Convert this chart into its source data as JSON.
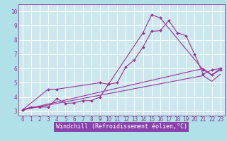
{
  "bg_color": "#b0e0e8",
  "plot_bg_color": "#cce8ee",
  "grid_color": "#ffffff",
  "line_color": "#993399",
  "xlabel": "Windchill (Refroidissement éolien,°C)",
  "bottom_bar_color": "#8844aa",
  "ylabel_ticks": [
    3,
    4,
    5,
    6,
    7,
    8,
    9,
    10
  ],
  "xlim": [
    -0.5,
    23.5
  ],
  "ylim": [
    2.7,
    10.5
  ],
  "xtick_labels": [
    "0",
    "1",
    "2",
    "3",
    "4",
    "5",
    "6",
    "7",
    "8",
    "9",
    "10",
    "11",
    "12",
    "13",
    "14",
    "15",
    "16",
    "17",
    "18",
    "19",
    "20",
    "21",
    "22",
    "23"
  ],
  "series1_x": [
    0,
    1,
    2,
    3,
    4,
    5,
    6,
    7,
    8,
    9,
    10,
    11,
    12,
    13,
    14,
    15,
    16,
    17,
    18,
    19,
    20,
    21,
    22,
    23
  ],
  "series1_y": [
    3.1,
    3.3,
    3.3,
    3.3,
    3.9,
    3.55,
    3.6,
    3.75,
    3.75,
    4.0,
    4.9,
    5.0,
    6.1,
    6.6,
    7.5,
    8.6,
    8.65,
    9.35,
    8.5,
    8.3,
    7.0,
    5.6,
    5.9,
    6.0
  ],
  "series2_x": [
    0,
    3,
    4,
    9,
    10,
    14,
    15,
    16,
    21,
    22,
    23
  ],
  "series2_y": [
    3.1,
    4.55,
    4.55,
    5.0,
    4.9,
    8.5,
    9.75,
    9.55,
    5.9,
    5.55,
    5.9
  ],
  "series3_x": [
    0,
    21,
    22,
    23
  ],
  "series3_y": [
    3.1,
    6.0,
    5.55,
    6.0
  ],
  "series4_x": [
    0,
    21,
    22,
    23
  ],
  "series4_y": [
    3.1,
    5.5,
    5.1,
    5.6
  ],
  "tick_fontsize": 5.5,
  "xlabel_fontsize": 6.0
}
